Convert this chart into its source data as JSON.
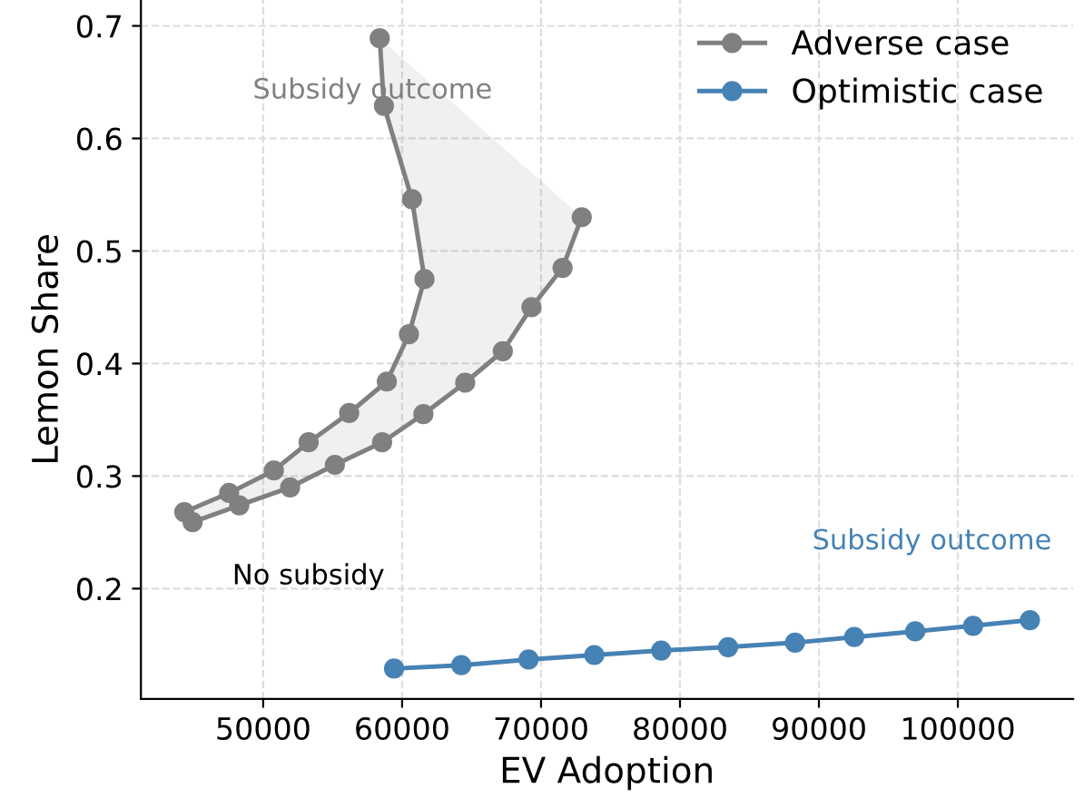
{
  "chart_data": {
    "type": "line",
    "xlabel": "EV Adoption",
    "ylabel": "Lemon Share",
    "xlim": [
      41200,
      108300
    ],
    "ylim": [
      0.102,
      0.723
    ],
    "xticks": [
      50000,
      60000,
      70000,
      80000,
      90000,
      100000
    ],
    "yticks": [
      0.2,
      0.3,
      0.4,
      0.5,
      0.6,
      0.7
    ],
    "grid": true,
    "legend": "top right",
    "marker": "circle",
    "line_style": "solid",
    "series": [
      {
        "name": "Adverse case",
        "color": "#808080",
        "x": [
          58390,
          58690,
          60710,
          61610,
          60490,
          58900,
          56190,
          53270,
          50770,
          47550,
          44320,
          44920,
          48280,
          51940,
          55160,
          58560,
          61530,
          64540,
          67250,
          69310,
          71550,
          72930
        ],
        "values": [
          0.689,
          0.629,
          0.546,
          0.475,
          0.426,
          0.384,
          0.356,
          0.33,
          0.305,
          0.285,
          0.268,
          0.259,
          0.274,
          0.29,
          0.31,
          0.33,
          0.355,
          0.383,
          0.411,
          0.45,
          0.485,
          0.53
        ]
      },
      {
        "name": "Optimistic case",
        "color": "#4682b4",
        "x": [
          59420,
          64260,
          69100,
          73830,
          78650,
          83460,
          88280,
          92540,
          96930,
          101100,
          105190
        ],
        "values": [
          0.129,
          0.132,
          0.137,
          0.141,
          0.145,
          0.148,
          0.152,
          0.157,
          0.162,
          0.167,
          0.172
        ]
      }
    ],
    "annotations": [
      "Subsidy outcome",
      "No subsidy",
      "Subsidy outcome"
    ]
  }
}
